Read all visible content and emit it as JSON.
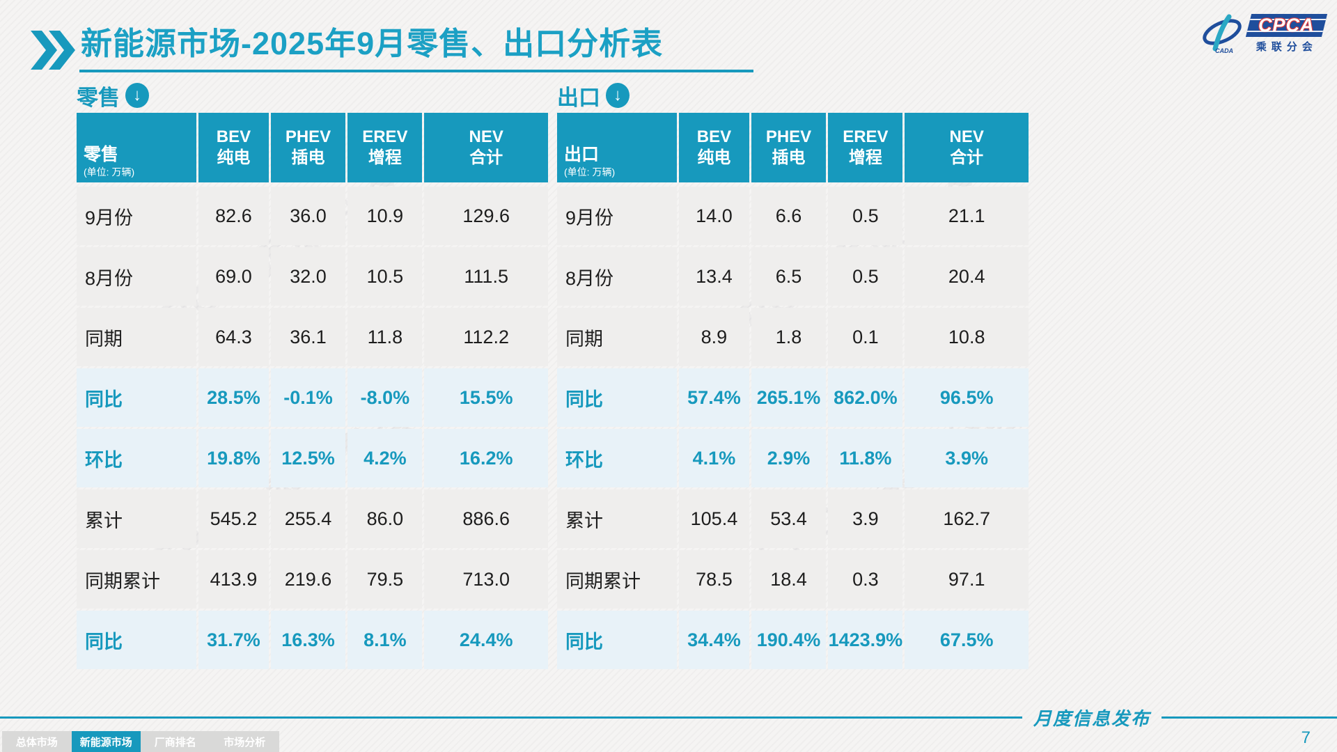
{
  "accent_color": "#1799BD",
  "header": {
    "title": "新能源市场-2025年9月零售、出口分析表",
    "logo": {
      "acronym": "CPCA",
      "cn": "乘联分会",
      "cada": "CADA"
    }
  },
  "watermark": "CPCA 乘联分会",
  "tables": [
    {
      "section_label": "零售",
      "corner": {
        "label": "零售",
        "unit": "(单位: 万辆)"
      },
      "columns": [
        {
          "en": "BEV",
          "cn": "纯电"
        },
        {
          "en": "PHEV",
          "cn": "插电"
        },
        {
          "en": "EREV",
          "cn": "增程"
        },
        {
          "en": "NEV",
          "cn": "合计"
        }
      ],
      "rows": [
        {
          "label": "9月份",
          "type": "data",
          "values": [
            "82.6",
            "36.0",
            "10.9",
            "129.6"
          ]
        },
        {
          "label": "8月份",
          "type": "data",
          "values": [
            "69.0",
            "32.0",
            "10.5",
            "111.5"
          ]
        },
        {
          "label": "同期",
          "type": "data",
          "values": [
            "64.3",
            "36.1",
            "11.8",
            "112.2"
          ]
        },
        {
          "label": "同比",
          "type": "percent",
          "values": [
            "28.5%",
            "-0.1%",
            "-8.0%",
            "15.5%"
          ]
        },
        {
          "label": "环比",
          "type": "percent",
          "values": [
            "19.8%",
            "12.5%",
            "4.2%",
            "16.2%"
          ]
        },
        {
          "label": "累计",
          "type": "data",
          "values": [
            "545.2",
            "255.4",
            "86.0",
            "886.6"
          ]
        },
        {
          "label": "同期累计",
          "type": "data",
          "values": [
            "413.9",
            "219.6",
            "79.5",
            "713.0"
          ]
        },
        {
          "label": "同比",
          "type": "percent",
          "values": [
            "31.7%",
            "16.3%",
            "8.1%",
            "24.4%"
          ]
        }
      ]
    },
    {
      "section_label": "出口",
      "corner": {
        "label": "出口",
        "unit": "(单位: 万辆)"
      },
      "columns": [
        {
          "en": "BEV",
          "cn": "纯电"
        },
        {
          "en": "PHEV",
          "cn": "插电"
        },
        {
          "en": "EREV",
          "cn": "增程"
        },
        {
          "en": "NEV",
          "cn": "合计"
        }
      ],
      "rows": [
        {
          "label": "9月份",
          "type": "data",
          "values": [
            "14.0",
            "6.6",
            "0.5",
            "21.1"
          ]
        },
        {
          "label": "8月份",
          "type": "data",
          "values": [
            "13.4",
            "6.5",
            "0.5",
            "20.4"
          ]
        },
        {
          "label": "同期",
          "type": "data",
          "values": [
            "8.9",
            "1.8",
            "0.1",
            "10.8"
          ]
        },
        {
          "label": "同比",
          "type": "percent",
          "values": [
            "57.4%",
            "265.1%",
            "862.0%",
            "96.5%"
          ]
        },
        {
          "label": "环比",
          "type": "percent",
          "values": [
            "4.1%",
            "2.9%",
            "11.8%",
            "3.9%"
          ]
        },
        {
          "label": "累计",
          "type": "data",
          "values": [
            "105.4",
            "53.4",
            "3.9",
            "162.7"
          ]
        },
        {
          "label": "同期累计",
          "type": "data",
          "values": [
            "78.5",
            "18.4",
            "0.3",
            "97.1"
          ]
        },
        {
          "label": "同比",
          "type": "percent",
          "values": [
            "34.4%",
            "190.4%",
            "1423.9%",
            "67.5%"
          ]
        }
      ]
    }
  ],
  "footer": {
    "divider_label": "月度信息发布",
    "page_number": "7",
    "tabs": [
      {
        "label": "总体市场",
        "active": false
      },
      {
        "label": "新能源市场",
        "active": true
      },
      {
        "label": "厂商排名",
        "active": false
      },
      {
        "label": "市场分析",
        "active": false
      }
    ]
  }
}
